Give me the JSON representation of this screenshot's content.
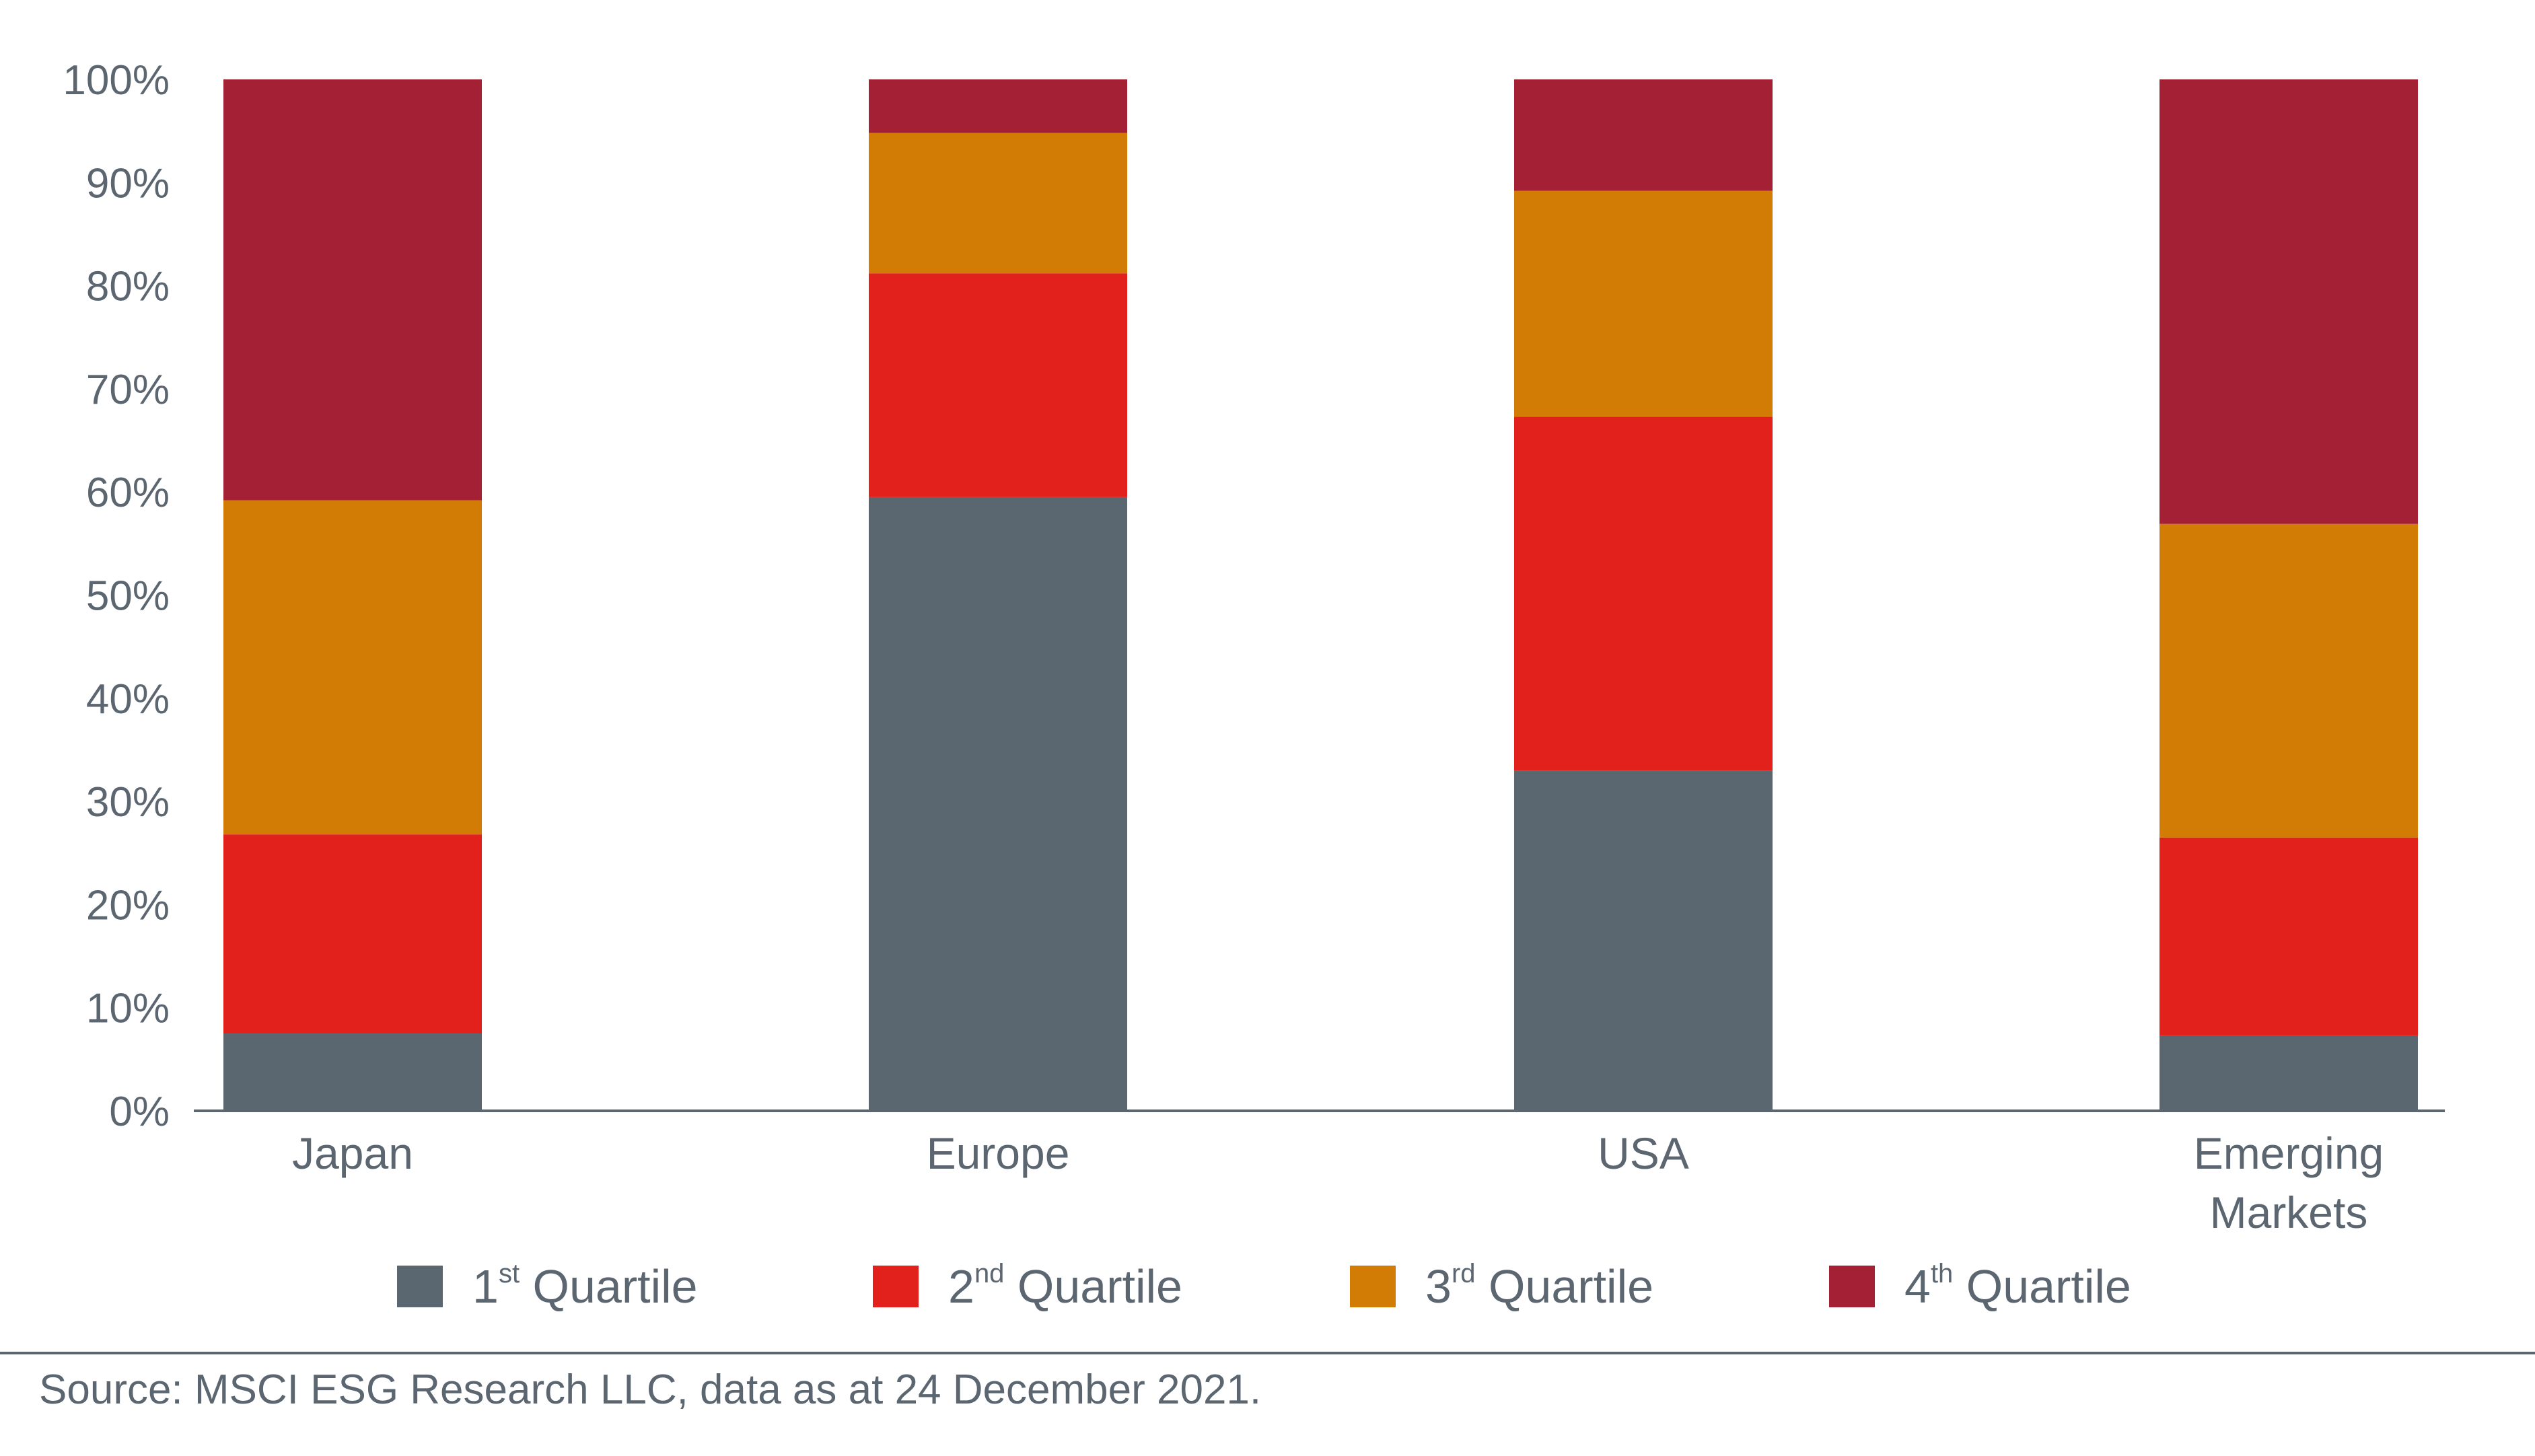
{
  "chart_data": {
    "type": "bar",
    "stacked": true,
    "categories": [
      "Japan",
      "Europe",
      "USA",
      "Emerging Markets"
    ],
    "category_lines": [
      [
        "Japan"
      ],
      [
        "Europe"
      ],
      [
        "USA"
      ],
      [
        "Emerging",
        "Markets"
      ]
    ],
    "series": [
      {
        "name": "1st Quartile",
        "ordinal": "1",
        "suffix": "st",
        "rest": "Quartile",
        "color": "#5b6770",
        "values": [
          7.5,
          59.5,
          33,
          7.3
        ]
      },
      {
        "name": "2nd Quartile",
        "ordinal": "2",
        "suffix": "nd",
        "rest": "Quartile",
        "color": "#e2211c",
        "values": [
          19.3,
          21.7,
          34.3,
          19.2
        ]
      },
      {
        "name": "3rd Quartile",
        "ordinal": "3",
        "suffix": "rd",
        "rest": "Quartile",
        "color": "#d27c06",
        "values": [
          32.4,
          13.6,
          21.9,
          30.4
        ]
      },
      {
        "name": "4th Quartile",
        "ordinal": "4",
        "suffix": "th",
        "rest": "Quartile",
        "color": "#a32035",
        "values": [
          40.8,
          5.2,
          10.8,
          43.1
        ]
      }
    ],
    "yticks": [
      "0%",
      "10%",
      "20%",
      "30%",
      "40%",
      "50%",
      "60%",
      "70%",
      "80%",
      "90%",
      "100%"
    ],
    "ylim": [
      0,
      100
    ],
    "grid": false,
    "legend_position": "bottom"
  },
  "footer": {
    "source": "Source: MSCI ESG Research LLC, data as at 24 December 2021."
  }
}
